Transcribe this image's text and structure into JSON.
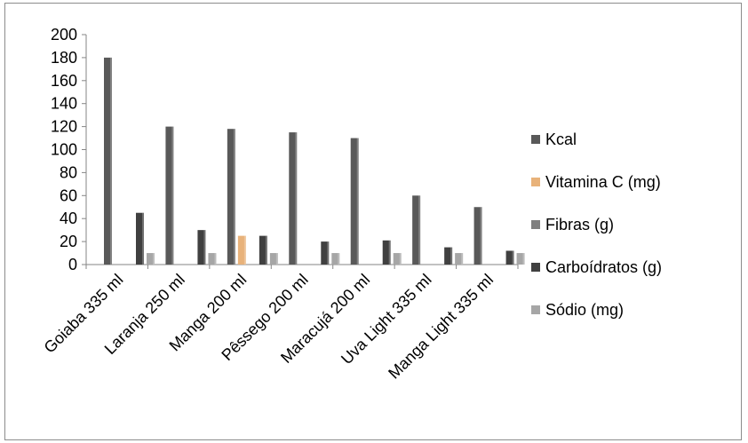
{
  "chart_data": {
    "type": "bar",
    "title": "",
    "xlabel": "",
    "ylabel": "",
    "ylim": [
      0,
      200
    ],
    "yticks": [
      0,
      20,
      40,
      60,
      80,
      100,
      120,
      140,
      160,
      180,
      200
    ],
    "grid": false,
    "legend_position": "right",
    "categories": [
      "Goiaba 335 ml",
      "Laranja 250 ml",
      "Manga 200 ml",
      "Pêssego 200 ml",
      "Maracujá 200 ml",
      "Uva Light 335 ml",
      "Manga Light 335 ml"
    ],
    "series": [
      {
        "name": "Kcal",
        "color": "#595959",
        "values": [
          180,
          120,
          118,
          115,
          110,
          60,
          50
        ]
      },
      {
        "name": "Vitamina C (mg)",
        "color": "#e8b27a",
        "values": [
          0,
          0,
          25,
          0,
          0,
          0,
          0
        ]
      },
      {
        "name": "Fibras (g)",
        "color": "#7f7f7f",
        "values": [
          0,
          0,
          0,
          0,
          0,
          0,
          0
        ]
      },
      {
        "name": "Carboídratos (g)",
        "color": "#404040",
        "values": [
          45,
          30,
          25,
          20,
          21,
          15,
          12
        ]
      },
      {
        "name": "Sódio (mg)",
        "color": "#a6a6a6",
        "values": [
          10,
          10,
          10,
          10,
          10,
          10,
          10
        ]
      }
    ]
  }
}
